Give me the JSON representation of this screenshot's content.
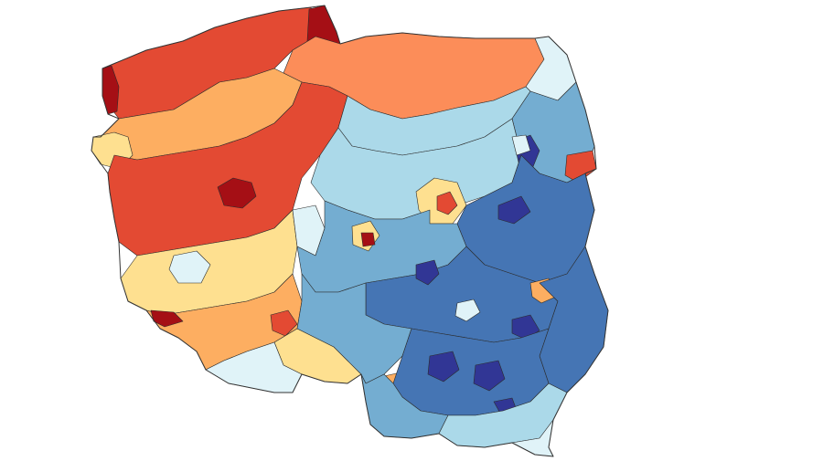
{
  "map": {
    "type": "choropleth",
    "region": "Poland",
    "palette": {
      "very_high_red": "#a50f15",
      "high_red": "#e34a33",
      "mid_orange": "#fc8d59",
      "light_orange": "#fdae61",
      "pale_yellow": "#fee090",
      "very_pale_blue": "#e0f3f8",
      "light_blue": "#abd9e9",
      "mid_blue": "#74add1",
      "blue": "#4575b4",
      "dark_blue": "#313695"
    }
  }
}
